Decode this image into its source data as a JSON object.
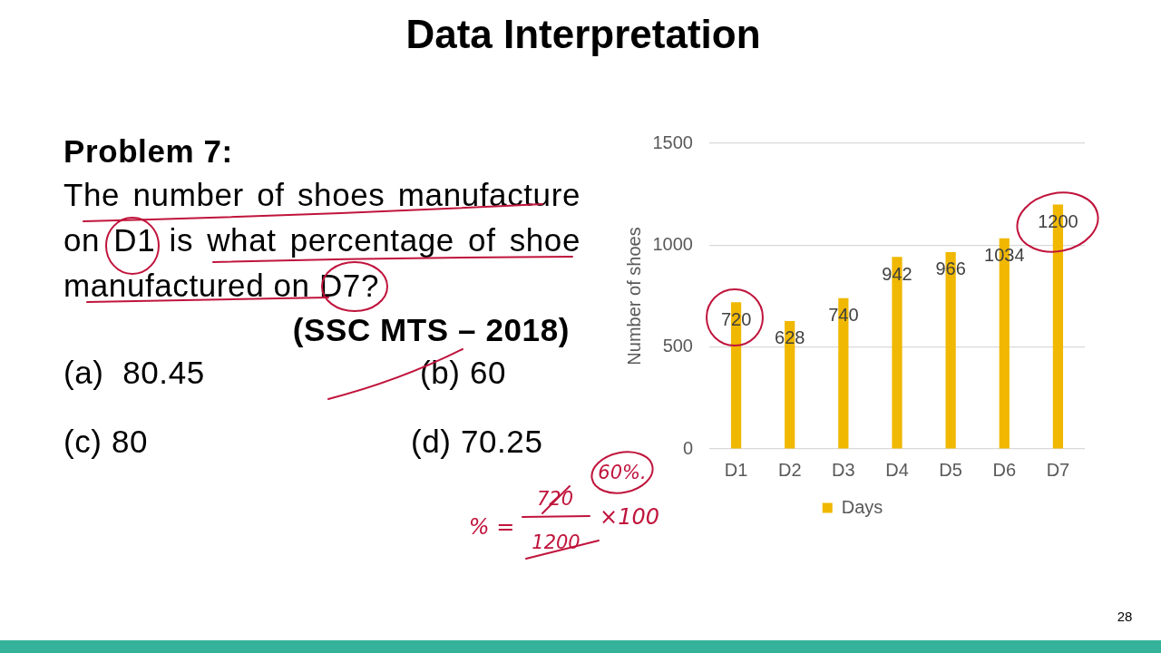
{
  "chart_data": {
    "type": "bar",
    "title": "Data Interpretation",
    "categories": [
      "D1",
      "D2",
      "D3",
      "D4",
      "D5",
      "D6",
      "D7"
    ],
    "series": [
      {
        "name": "Days",
        "color": "#f0b800",
        "values": [
          720,
          628,
          740,
          942,
          966,
          1034,
          1200
        ]
      }
    ],
    "ylabel": "Number of shoes",
    "ylim": [
      0,
      1500
    ],
    "yticks": [
      0,
      500,
      1000,
      1500
    ],
    "grid": "y",
    "legend": "bottom",
    "data_labels": true,
    "annotations": [
      "Problem 7:",
      "The number of shoes manufacture",
      "on D1 is what percentage of shoe",
      "manufactured on D7?",
      "(SSC MTS – 2018)",
      "(a)  80.45",
      "(b) 60",
      "(c) 80",
      "(d) 70.25",
      "60%.",
      "% =",
      "720",
      "1200",
      "×100",
      "28"
    ]
  }
}
